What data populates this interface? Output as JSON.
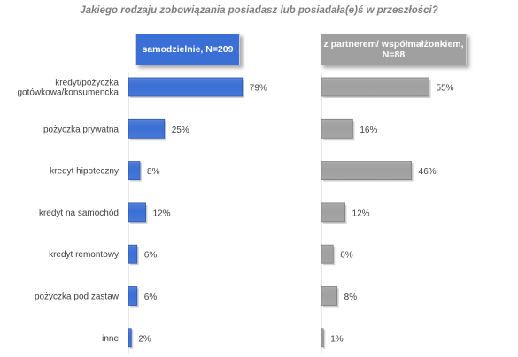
{
  "title": "Jakiego rodzaju zobowiązania posiadasz lub posiadała(e)ś w przeszłości?",
  "colors": {
    "series_1": "#3a6fd6",
    "series_2": "#a0a0a0",
    "title": "#7f7f7f"
  },
  "chart_data": [
    {
      "type": "bar",
      "orientation": "horizontal",
      "series": [
        {
          "name": "samodzielnie, N=209",
          "values": [
            79,
            25,
            8,
            12,
            6,
            6,
            2
          ]
        }
      ],
      "categories": [
        "kredyt/pożyczka gotówkowa/konsumencka",
        "pożyczka prywatna",
        "kredyt hipoteczny",
        "kredyt na samochód",
        "kredyt remontowy",
        "pożyczka pod zastaw",
        "inne"
      ],
      "category_lines": [
        [
          "kredyt/pożyczka",
          "gotówkowa/konsumencka"
        ],
        [
          "pożyczka prywatna"
        ],
        [
          "kredyt hipoteczny"
        ],
        [
          "kredyt na samochód"
        ],
        [
          "kredyt remontowy"
        ],
        [
          "pożyczka pod zastaw"
        ],
        [
          "inne"
        ]
      ],
      "data_labels": [
        "79%",
        "25%",
        "8%",
        "12%",
        "6%",
        "6%",
        "2%"
      ],
      "unit": "%",
      "xlim": [
        0,
        100
      ],
      "grid": false
    },
    {
      "type": "bar",
      "orientation": "horizontal",
      "series": [
        {
          "name": "z partnerem/ współmałżonkiem, N=88",
          "values": [
            55,
            16,
            46,
            12,
            6,
            8,
            1
          ]
        }
      ],
      "categories": [
        "kredyt/pożyczka gotówkowa/konsumencka",
        "pożyczka prywatna",
        "kredyt hipoteczny",
        "kredyt na samochód",
        "kredyt remontowy",
        "pożyczka pod zastaw",
        "inne"
      ],
      "data_labels": [
        "55%",
        "16%",
        "46%",
        "12%",
        "6%",
        "8%",
        "1%"
      ],
      "unit": "%",
      "xlim": [
        0,
        100
      ],
      "grid": false
    }
  ],
  "headers": {
    "left": "samodzielnie, N=209",
    "right_line1": "z partnerem/ współmałżonkiem,",
    "right_line2": "N=88"
  }
}
